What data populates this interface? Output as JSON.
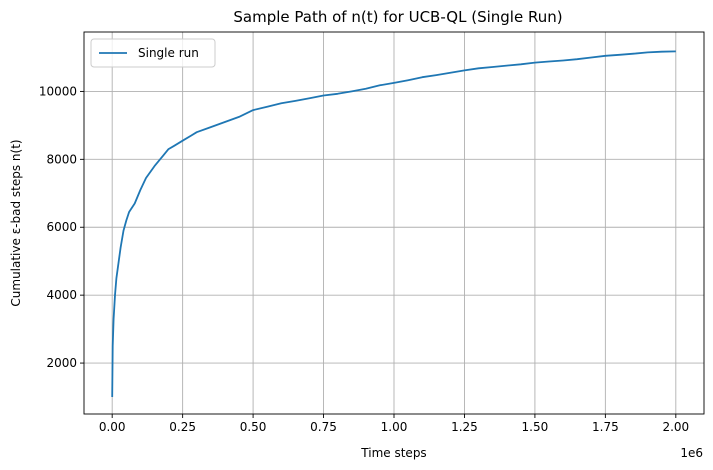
{
  "chart_data": {
    "type": "line",
    "title": "Sample Path of n(t) for UCB-QL (Single Run)",
    "xlabel": "Time steps",
    "ylabel": "Cumulative ε-bad steps n(t)",
    "x_offset_label": "1e6",
    "xlim": [
      -0.1,
      2.1
    ],
    "ylim": [
      500,
      11750
    ],
    "x_ticks": [
      0.0,
      0.25,
      0.5,
      0.75,
      1.0,
      1.25,
      1.5,
      1.75,
      2.0
    ],
    "x_tick_labels": [
      "0.00",
      "0.25",
      "0.50",
      "0.75",
      "1.00",
      "1.25",
      "1.50",
      "1.75",
      "2.00"
    ],
    "y_ticks": [
      2000,
      4000,
      6000,
      8000,
      10000
    ],
    "y_tick_labels": [
      "2000",
      "4000",
      "6000",
      "8000",
      "10000"
    ],
    "grid": true,
    "legend_position": "upper-left",
    "colors": {
      "series": "#1f77b4"
    },
    "series": [
      {
        "name": "Single run",
        "x": [
          0.0,
          0.002,
          0.005,
          0.01,
          0.015,
          0.02,
          0.03,
          0.04,
          0.05,
          0.06,
          0.08,
          0.1,
          0.12,
          0.15,
          0.18,
          0.2,
          0.22,
          0.25,
          0.28,
          0.3,
          0.35,
          0.4,
          0.45,
          0.5,
          0.55,
          0.6,
          0.65,
          0.7,
          0.75,
          0.8,
          0.85,
          0.9,
          0.95,
          1.0,
          1.05,
          1.1,
          1.15,
          1.2,
          1.25,
          1.3,
          1.35,
          1.4,
          1.45,
          1.5,
          1.55,
          1.6,
          1.65,
          1.7,
          1.75,
          1.8,
          1.85,
          1.9,
          1.95,
          2.0
        ],
        "y": [
          1000,
          2500,
          3300,
          4000,
          4500,
          4800,
          5400,
          5900,
          6200,
          6450,
          6700,
          7100,
          7450,
          7800,
          8100,
          8300,
          8400,
          8550,
          8700,
          8800,
          8950,
          9100,
          9250,
          9450,
          9550,
          9650,
          9720,
          9800,
          9880,
          9930,
          10000,
          10080,
          10180,
          10250,
          10330,
          10420,
          10480,
          10550,
          10620,
          10680,
          10720,
          10760,
          10800,
          10850,
          10880,
          10910,
          10950,
          11000,
          11050,
          11080,
          11110,
          11150,
          11170,
          11180
        ]
      }
    ]
  }
}
